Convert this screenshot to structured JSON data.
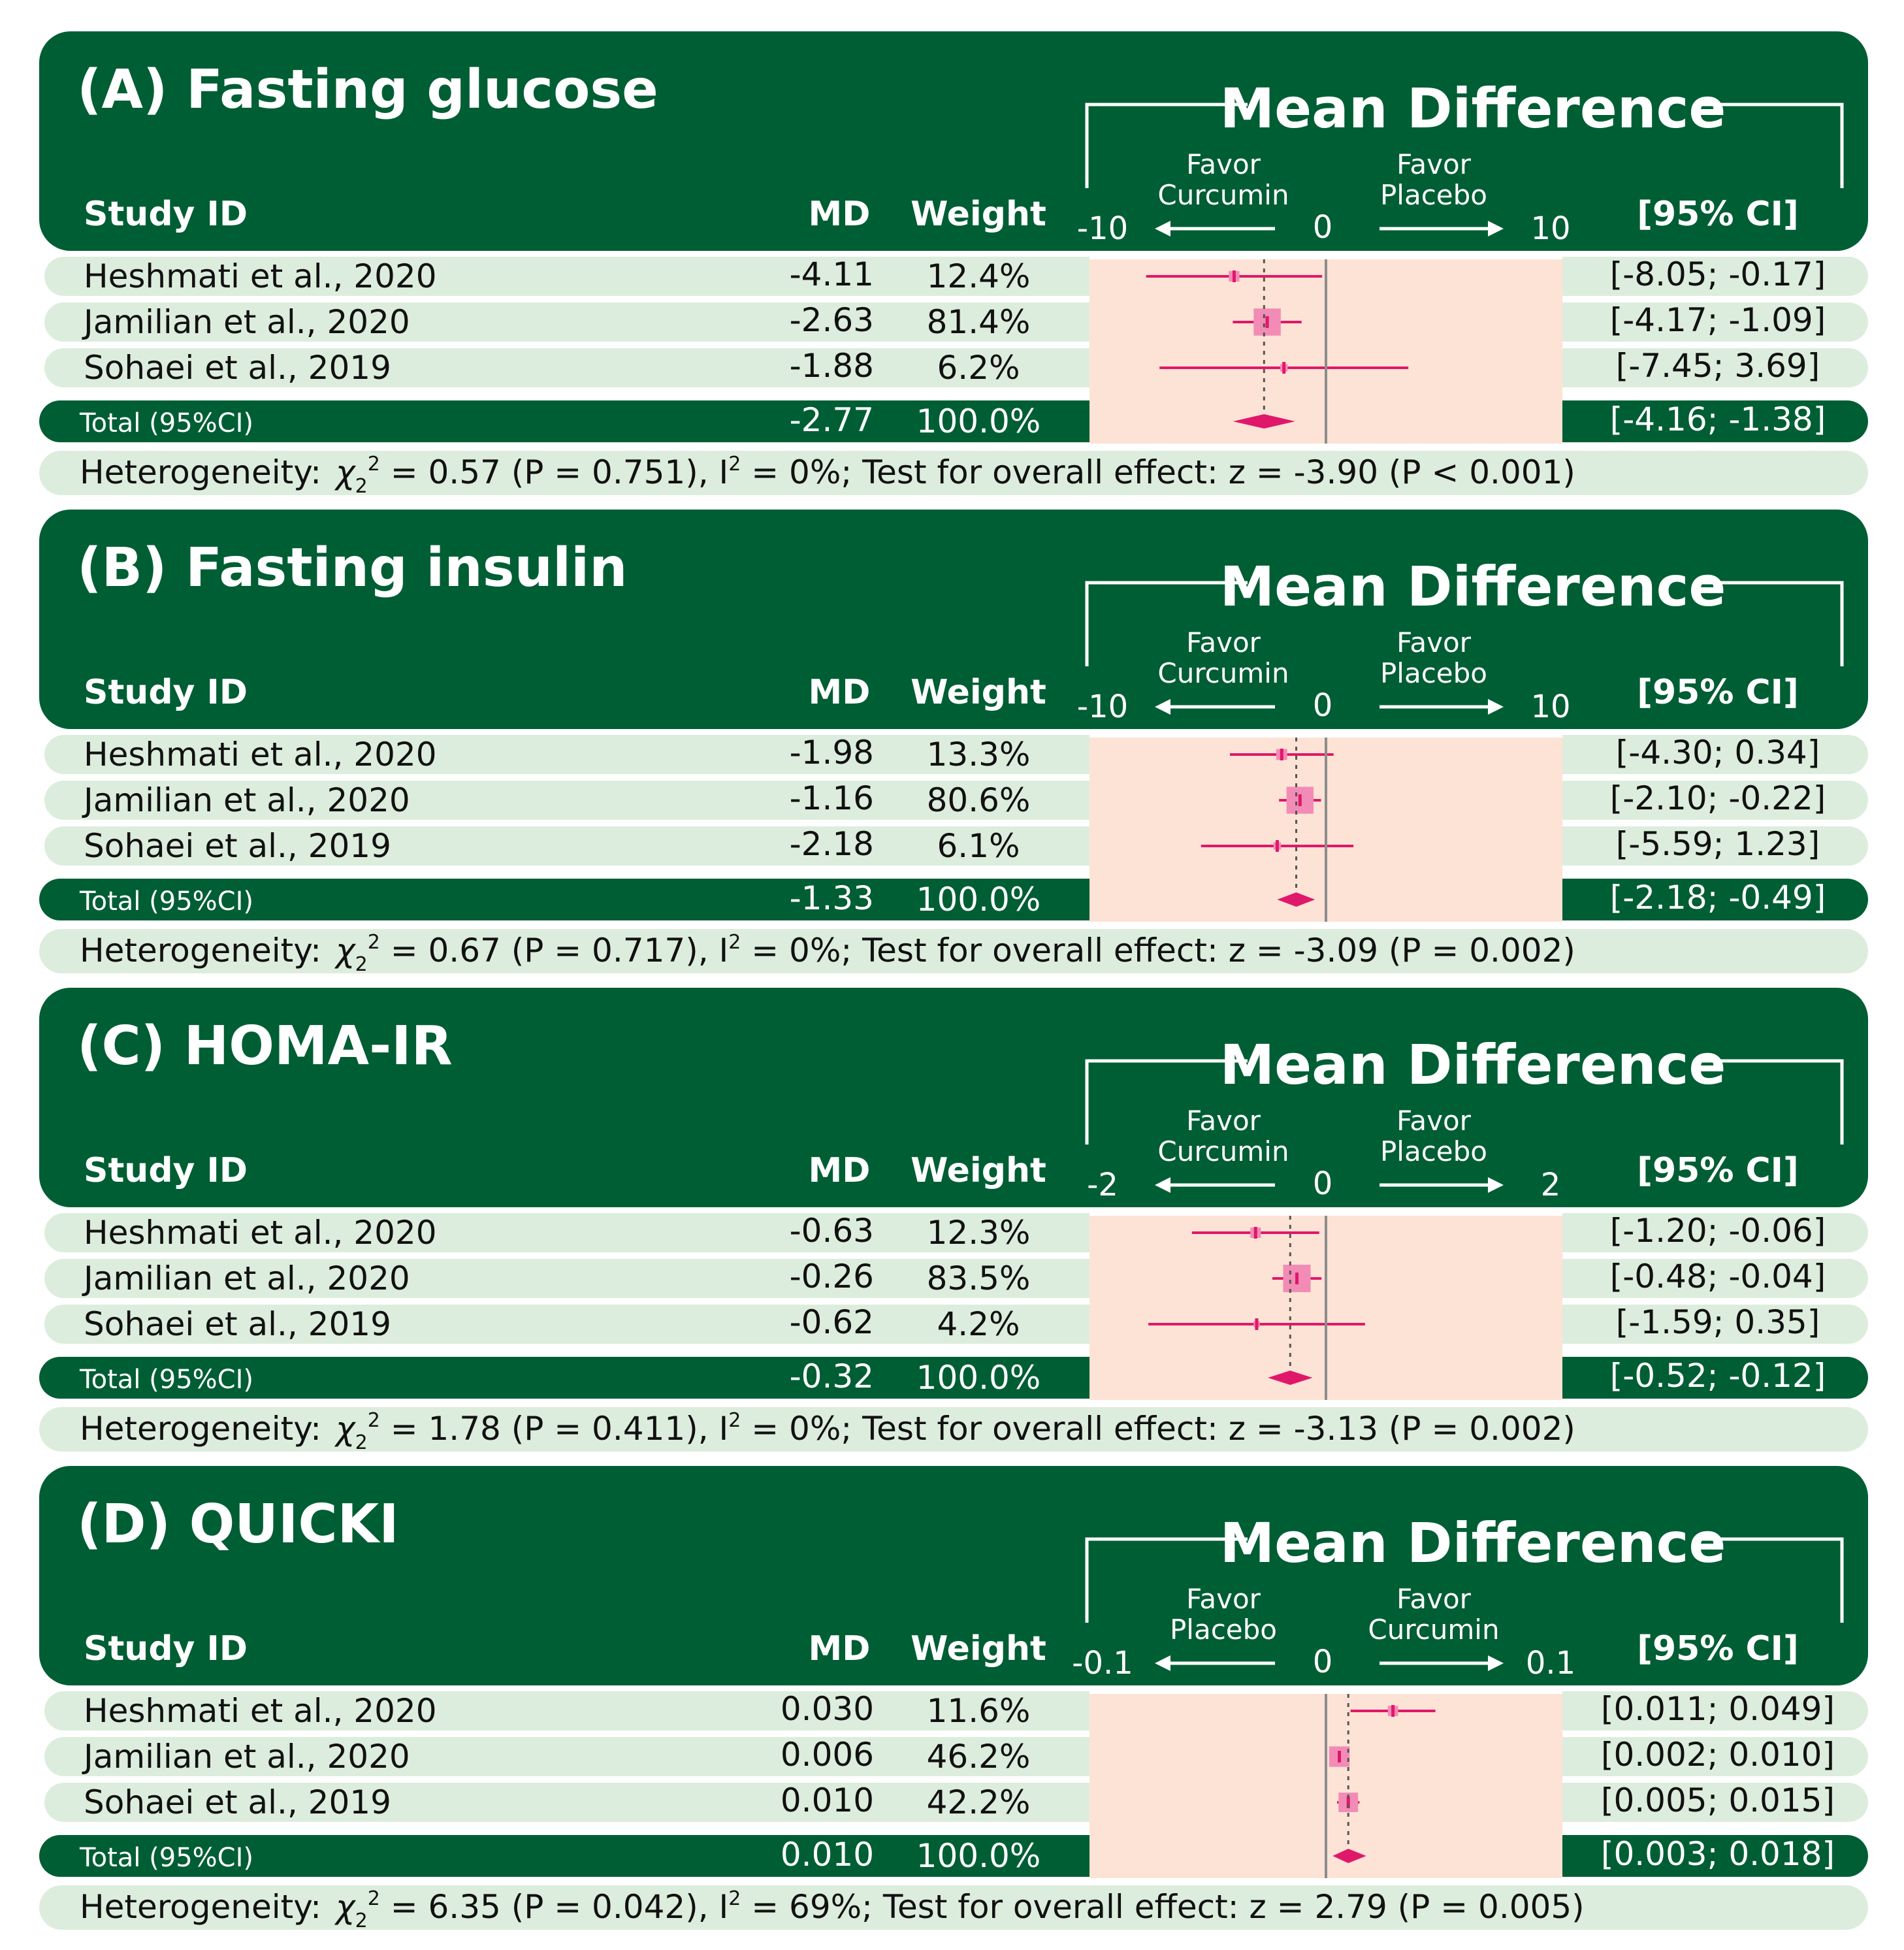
{
  "colors": {
    "dark_green": "#005E34",
    "light_green": "#DDEDDD",
    "peach": "#FDE3D5",
    "pink": "#E0186A",
    "pink_box": "#F28CB6",
    "zero_line": "#8C8C8C"
  },
  "chart_data": [
    {
      "type": "forest",
      "title": "(A) Fasting glucose",
      "header": {
        "study": "Study ID",
        "md": "MD",
        "weight": "Weight",
        "ci": "[95% CI]",
        "band": "Mean Difference"
      },
      "axis": {
        "min": -10,
        "max": 10,
        "tick_left": "-10",
        "tick_zero": "0",
        "tick_right": "10"
      },
      "favor_left": [
        "Favor",
        "Curcumin"
      ],
      "favor_right": [
        "Favor",
        "Placebo"
      ],
      "studies": [
        {
          "name": "Heshmati et al., 2020",
          "md": -4.11,
          "md_label": "-4.11",
          "weight": 12.4,
          "weight_label": "12.4%",
          "lo": -8.05,
          "hi": -0.17,
          "ci_label": "[-8.05; -0.17]"
        },
        {
          "name": "Jamilian et al., 2020",
          "md": -2.63,
          "md_label": "-2.63",
          "weight": 81.4,
          "weight_label": "81.4%",
          "lo": -4.17,
          "hi": -1.09,
          "ci_label": "[-4.17; -1.09]"
        },
        {
          "name": "Sohaei et al., 2019",
          "md": -1.88,
          "md_label": "-1.88",
          "weight": 6.2,
          "weight_label": "6.2%",
          "lo": -7.45,
          "hi": 3.69,
          "ci_label": "[-7.45;  3.69]"
        }
      ],
      "total": {
        "label": "Total (95%CI)",
        "md": -2.77,
        "md_label": "-2.77",
        "weight_label": "100.0%",
        "lo": -4.16,
        "hi": -1.38,
        "ci_label": "[-4.16; -1.38]"
      },
      "heterogeneity": {
        "prefix": "Heterogeneity:",
        "chi": "χ",
        "sub": "2",
        "sup": "2",
        "stat": " = 0.57 (P = 0.751), I",
        "i2sup": "2",
        "rest": " = 0%; Test for overall effect: z = -3.90 (P < 0.001)"
      }
    },
    {
      "type": "forest",
      "title": "(B) Fasting insulin",
      "header": {
        "study": "Study ID",
        "md": "MD",
        "weight": "Weight",
        "ci": "[95% CI]",
        "band": "Mean Difference"
      },
      "axis": {
        "min": -10,
        "max": 10,
        "tick_left": "-10",
        "tick_zero": "0",
        "tick_right": "10"
      },
      "favor_left": [
        "Favor",
        "Curcumin"
      ],
      "favor_right": [
        "Favor",
        "Placebo"
      ],
      "studies": [
        {
          "name": "Heshmati et al., 2020",
          "md": -1.98,
          "md_label": "-1.98",
          "weight": 13.3,
          "weight_label": "13.3%",
          "lo": -4.3,
          "hi": 0.34,
          "ci_label": "[-4.30;  0.34]"
        },
        {
          "name": "Jamilian et al., 2020",
          "md": -1.16,
          "md_label": "-1.16",
          "weight": 80.6,
          "weight_label": "80.6%",
          "lo": -2.1,
          "hi": -0.22,
          "ci_label": "[-2.10; -0.22]"
        },
        {
          "name": "Sohaei et al., 2019",
          "md": -2.18,
          "md_label": "-2.18",
          "weight": 6.1,
          "weight_label": "6.1%",
          "lo": -5.59,
          "hi": 1.23,
          "ci_label": "[-5.59;  1.23]"
        }
      ],
      "total": {
        "label": "Total (95%CI)",
        "md": -1.33,
        "md_label": "-1.33",
        "weight_label": "100.0%",
        "lo": -2.18,
        "hi": -0.49,
        "ci_label": "[-2.18; -0.49]"
      },
      "heterogeneity": {
        "prefix": "Heterogeneity:",
        "chi": "χ",
        "sub": "2",
        "sup": "2",
        "stat": " = 0.67 (P = 0.717), I",
        "i2sup": "2",
        "rest": " = 0%; Test for overall effect: z = -3.09 (P = 0.002)"
      }
    },
    {
      "type": "forest",
      "title": "(C) HOMA-IR",
      "header": {
        "study": "Study ID",
        "md": "MD",
        "weight": "Weight",
        "ci": "[95% CI]",
        "band": "Mean Difference"
      },
      "axis": {
        "min": -2,
        "max": 2,
        "tick_left": "-2",
        "tick_zero": "0",
        "tick_right": "2"
      },
      "favor_left": [
        "Favor",
        "Curcumin"
      ],
      "favor_right": [
        "Favor",
        "Placebo"
      ],
      "studies": [
        {
          "name": "Heshmati et al., 2020",
          "md": -0.63,
          "md_label": "-0.63",
          "weight": 12.3,
          "weight_label": "12.3%",
          "lo": -1.2,
          "hi": -0.06,
          "ci_label": "[-1.20; -0.06]"
        },
        {
          "name": "Jamilian et al., 2020",
          "md": -0.26,
          "md_label": "-0.26",
          "weight": 83.5,
          "weight_label": "83.5%",
          "lo": -0.48,
          "hi": -0.04,
          "ci_label": "[-0.48; -0.04]"
        },
        {
          "name": "Sohaei et al., 2019",
          "md": -0.62,
          "md_label": "-0.62",
          "weight": 4.2,
          "weight_label": "4.2%",
          "lo": -1.59,
          "hi": 0.35,
          "ci_label": "[-1.59;  0.35]"
        }
      ],
      "total": {
        "label": "Total (95%CI)",
        "md": -0.32,
        "md_label": "-0.32",
        "weight_label": "100.0%",
        "lo": -0.52,
        "hi": -0.12,
        "ci_label": "[-0.52; -0.12]"
      },
      "heterogeneity": {
        "prefix": "Heterogeneity:",
        "chi": "χ",
        "sub": "2",
        "sup": "2",
        "stat": " = 1.78 (P = 0.411), I",
        "i2sup": "2",
        "rest": " = 0%; Test for overall effect: z = -3.13 (P = 0.002)"
      }
    },
    {
      "type": "forest",
      "title": "(D) QUICKI",
      "header": {
        "study": "Study ID",
        "md": "MD",
        "weight": "Weight",
        "ci": "[95% CI]",
        "band": "Mean Difference"
      },
      "axis": {
        "min": -0.1,
        "max": 0.1,
        "tick_left": "-0.1",
        "tick_zero": "0",
        "tick_right": "0.1"
      },
      "favor_left": [
        "Favor",
        "Placebo"
      ],
      "favor_right": [
        "Favor",
        "Curcumin"
      ],
      "studies": [
        {
          "name": "Heshmati et al., 2020",
          "md": 0.03,
          "md_label": "0.030",
          "weight": 11.6,
          "weight_label": "11.6%",
          "lo": 0.011,
          "hi": 0.049,
          "ci_label": "[0.011; 0.049]"
        },
        {
          "name": "Jamilian et al., 2020",
          "md": 0.006,
          "md_label": "0.006",
          "weight": 46.2,
          "weight_label": "46.2%",
          "lo": 0.002,
          "hi": 0.01,
          "ci_label": "[0.002; 0.010]"
        },
        {
          "name": "Sohaei et al., 2019",
          "md": 0.01,
          "md_label": "0.010",
          "weight": 42.2,
          "weight_label": "42.2%",
          "lo": 0.005,
          "hi": 0.015,
          "ci_label": "[0.005; 0.015]"
        }
      ],
      "total": {
        "label": "Total (95%CI)",
        "md": 0.01,
        "md_label": "0.010",
        "weight_label": "100.0%",
        "lo": 0.003,
        "hi": 0.018,
        "ci_label": "[0.003; 0.018]"
      },
      "heterogeneity": {
        "prefix": "Heterogeneity:",
        "chi": "χ",
        "sub": "2",
        "sup": "2",
        "stat": " = 6.35 (P = 0.042), I",
        "i2sup": "2",
        "rest": " = 69%; Test for overall effect: z = 2.79 (P = 0.005)"
      }
    }
  ]
}
